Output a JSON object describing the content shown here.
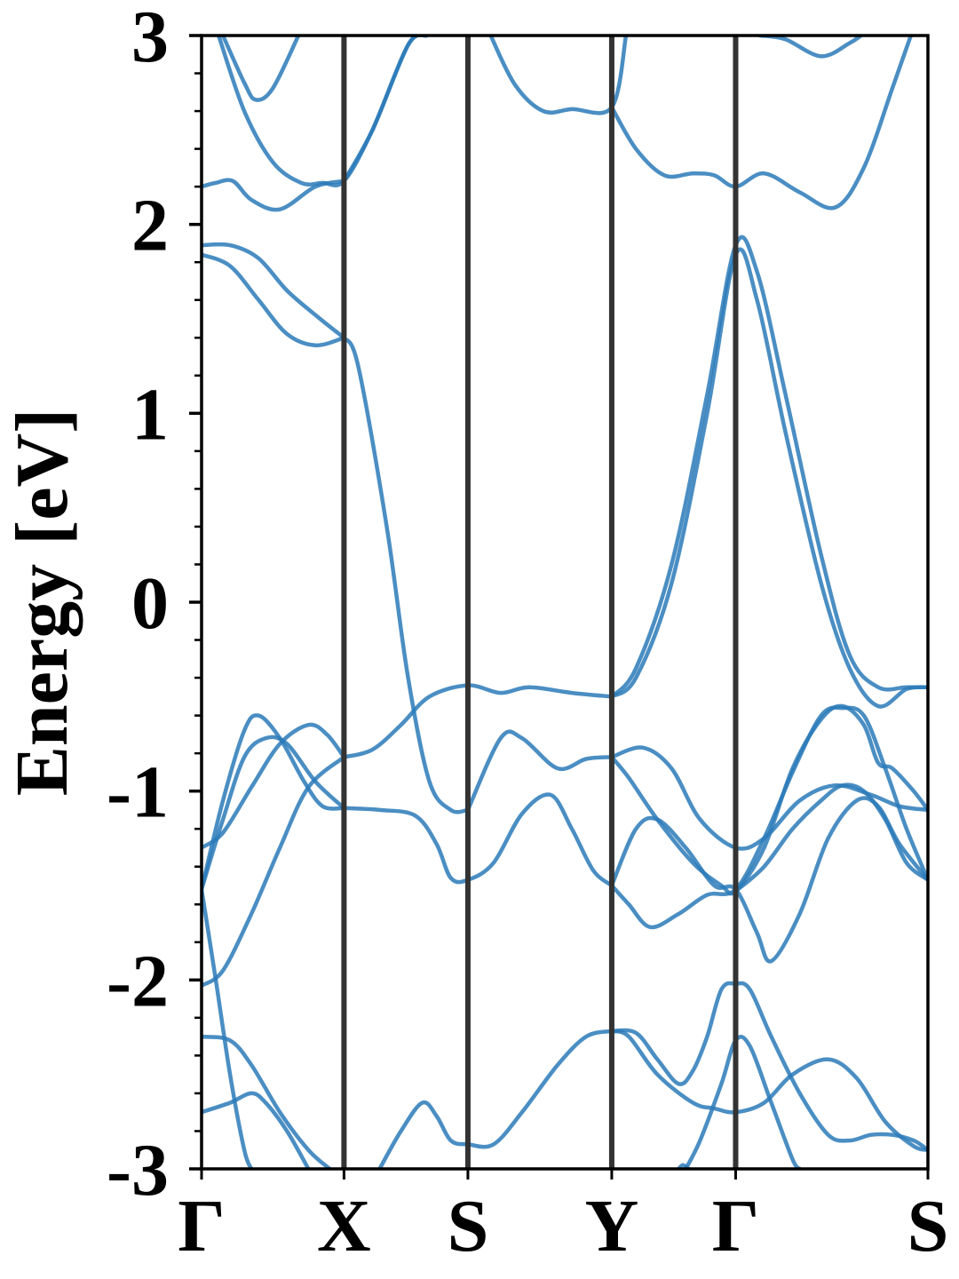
{
  "chart_data": {
    "type": "line",
    "title": "",
    "ylabel": "Energy [eV]",
    "xlabel": "",
    "ylim": [
      -3,
      3
    ],
    "yticks": [
      3,
      2,
      1,
      0,
      -1,
      -2,
      -3
    ],
    "ytick_labels": [
      "3",
      "2",
      "1",
      "0",
      "-1",
      "-2",
      "-3"
    ],
    "minor_ticks_per_major": 4,
    "grid": false,
    "xlim": [
      0,
      5.1
    ],
    "kpoints": [
      {
        "label": "Γ",
        "x": 0
      },
      {
        "label": "X",
        "x": 1.0
      },
      {
        "label": "S",
        "x": 1.87
      },
      {
        "label": "Y",
        "x": 2.88
      },
      {
        "label": "Γ",
        "x": 3.75
      },
      {
        "label": "S",
        "x": 5.1
      }
    ],
    "band_color": "#2a7ab8",
    "kpath_line_color": "#333333",
    "series": [
      {
        "points": [
          [
            0.15,
            3.0
          ],
          [
            0.3,
            2.75
          ],
          [
            0.38,
            2.66
          ],
          [
            0.5,
            2.72
          ],
          [
            0.68,
            3.0
          ]
        ]
      },
      {
        "points": [
          [
            0.12,
            3.0
          ],
          [
            0.3,
            2.6
          ],
          [
            0.5,
            2.33
          ],
          [
            0.7,
            2.22
          ],
          [
            0.85,
            2.22
          ],
          [
            1.0,
            2.23
          ],
          [
            1.2,
            2.5
          ],
          [
            1.45,
            2.95
          ],
          [
            1.58,
            3.0
          ]
        ]
      },
      {
        "points": [
          [
            0.0,
            2.2
          ],
          [
            0.1,
            2.22
          ],
          [
            0.22,
            2.23
          ],
          [
            0.35,
            2.13
          ],
          [
            0.55,
            2.08
          ],
          [
            0.8,
            2.2
          ],
          [
            1.0,
            2.23
          ]
        ]
      },
      {
        "points": [
          [
            1.0,
            2.23
          ],
          [
            1.2,
            2.5
          ],
          [
            1.45,
            2.95
          ],
          [
            1.58,
            3.0
          ]
        ]
      },
      {
        "points": [
          [
            2.03,
            3.0
          ],
          [
            2.2,
            2.74
          ],
          [
            2.4,
            2.6
          ],
          [
            2.6,
            2.61
          ],
          [
            2.88,
            2.62
          ],
          [
            2.98,
            3.0
          ]
        ]
      },
      {
        "points": [
          [
            2.88,
            2.62
          ],
          [
            3.05,
            2.4
          ],
          [
            3.25,
            2.26
          ],
          [
            3.45,
            2.27
          ],
          [
            3.6,
            2.26
          ],
          [
            3.75,
            2.2
          ],
          [
            3.95,
            2.27
          ],
          [
            4.2,
            2.17
          ],
          [
            4.45,
            2.09
          ],
          [
            4.65,
            2.3
          ],
          [
            4.85,
            2.72
          ],
          [
            4.98,
            3.0
          ]
        ]
      },
      {
        "points": [
          [
            3.92,
            3.0
          ],
          [
            4.1,
            2.98
          ],
          [
            4.35,
            2.89
          ],
          [
            4.55,
            2.96
          ],
          [
            4.63,
            3.0
          ]
        ]
      },
      {
        "points": [
          [
            0.0,
            1.89
          ],
          [
            0.2,
            1.89
          ],
          [
            0.4,
            1.82
          ],
          [
            0.6,
            1.65
          ],
          [
            0.8,
            1.52
          ],
          [
            1.0,
            1.4
          ]
        ]
      },
      {
        "points": [
          [
            0.0,
            1.84
          ],
          [
            0.2,
            1.78
          ],
          [
            0.4,
            1.6
          ],
          [
            0.6,
            1.42
          ],
          [
            0.8,
            1.36
          ],
          [
            1.0,
            1.4
          ]
        ]
      },
      {
        "points": [
          [
            1.0,
            1.4
          ],
          [
            1.1,
            1.25
          ],
          [
            1.3,
            0.4
          ],
          [
            1.45,
            -0.4
          ],
          [
            1.6,
            -0.95
          ],
          [
            1.75,
            -1.1
          ],
          [
            1.87,
            -1.1
          ]
        ]
      },
      {
        "points": [
          [
            1.87,
            -1.1
          ],
          [
            2.1,
            -0.72
          ],
          [
            2.25,
            -0.72
          ],
          [
            2.5,
            -0.88
          ],
          [
            2.7,
            -0.83
          ],
          [
            2.88,
            -0.82
          ]
        ]
      },
      {
        "points": [
          [
            2.88,
            -0.82
          ],
          [
            3.1,
            -0.77
          ],
          [
            3.3,
            -0.88
          ],
          [
            3.5,
            -1.15
          ],
          [
            3.75,
            -1.3
          ],
          [
            3.95,
            -1.25
          ],
          [
            4.2,
            -1.05
          ],
          [
            4.45,
            -0.97
          ],
          [
            4.7,
            -1.02
          ],
          [
            4.9,
            -1.08
          ],
          [
            5.1,
            -1.1
          ]
        ]
      },
      {
        "points": [
          [
            2.88,
            -0.5
          ],
          [
            3.05,
            -0.4
          ],
          [
            3.3,
            0.1
          ],
          [
            3.55,
            1.0
          ],
          [
            3.75,
            1.84
          ],
          [
            3.9,
            1.6
          ],
          [
            4.1,
            0.9
          ],
          [
            4.35,
            0.1
          ],
          [
            4.55,
            -0.35
          ],
          [
            4.75,
            -0.55
          ],
          [
            4.95,
            -0.46
          ],
          [
            5.1,
            -0.45
          ]
        ]
      },
      {
        "points": [
          [
            2.88,
            -0.5
          ],
          [
            3.05,
            -0.35
          ],
          [
            3.3,
            0.2
          ],
          [
            3.55,
            1.1
          ],
          [
            3.75,
            1.89
          ],
          [
            3.9,
            1.75
          ],
          [
            4.1,
            1.1
          ],
          [
            4.35,
            0.25
          ],
          [
            4.55,
            -0.28
          ],
          [
            4.75,
            -0.45
          ],
          [
            4.95,
            -0.45
          ],
          [
            5.1,
            -0.45
          ]
        ]
      },
      {
        "points": [
          [
            1.0,
            -0.82
          ],
          [
            1.2,
            -0.78
          ],
          [
            1.4,
            -0.65
          ],
          [
            1.6,
            -0.5
          ],
          [
            1.87,
            -0.44
          ],
          [
            2.1,
            -0.48
          ],
          [
            2.3,
            -0.45
          ],
          [
            2.6,
            -0.48
          ],
          [
            2.88,
            -0.5
          ]
        ]
      },
      {
        "points": [
          [
            0.0,
            -1.52
          ],
          [
            0.15,
            -1.05
          ],
          [
            0.3,
            -0.68
          ],
          [
            0.4,
            -0.6
          ],
          [
            0.55,
            -0.72
          ],
          [
            0.72,
            -0.95
          ],
          [
            0.85,
            -1.08
          ],
          [
            1.0,
            -1.09
          ]
        ]
      },
      {
        "points": [
          [
            0.0,
            -1.52
          ],
          [
            0.15,
            -1.15
          ],
          [
            0.3,
            -0.82
          ],
          [
            0.45,
            -0.72
          ],
          [
            0.6,
            -0.75
          ],
          [
            0.8,
            -0.95
          ],
          [
            1.0,
            -1.09
          ]
        ]
      },
      {
        "points": [
          [
            0.0,
            -1.3
          ],
          [
            0.15,
            -1.22
          ],
          [
            0.35,
            -0.98
          ],
          [
            0.55,
            -0.75
          ],
          [
            0.75,
            -0.65
          ],
          [
            0.88,
            -0.7
          ],
          [
            1.0,
            -0.82
          ]
        ]
      },
      {
        "points": [
          [
            0.0,
            -2.03
          ],
          [
            0.15,
            -1.95
          ],
          [
            0.35,
            -1.65
          ],
          [
            0.55,
            -1.3
          ],
          [
            0.75,
            -0.98
          ],
          [
            1.0,
            -0.82
          ]
        ]
      },
      {
        "points": [
          [
            1.0,
            -1.09
          ],
          [
            1.25,
            -1.1
          ],
          [
            1.5,
            -1.13
          ],
          [
            1.65,
            -1.28
          ],
          [
            1.75,
            -1.46
          ],
          [
            1.87,
            -1.47
          ],
          [
            2.05,
            -1.38
          ],
          [
            2.25,
            -1.12
          ],
          [
            2.45,
            -1.02
          ],
          [
            2.6,
            -1.2
          ],
          [
            2.75,
            -1.42
          ],
          [
            2.88,
            -1.5
          ]
        ]
      },
      {
        "points": [
          [
            2.88,
            -1.5
          ],
          [
            3.05,
            -1.2
          ],
          [
            3.2,
            -1.15
          ],
          [
            3.4,
            -1.3
          ],
          [
            3.6,
            -1.5
          ],
          [
            3.75,
            -1.52
          ],
          [
            3.9,
            -1.75
          ],
          [
            4.0,
            -1.9
          ],
          [
            4.2,
            -1.65
          ],
          [
            4.4,
            -1.25
          ],
          [
            4.6,
            -1.05
          ],
          [
            4.75,
            -1.08
          ],
          [
            4.9,
            -1.28
          ],
          [
            5.1,
            -1.47
          ]
        ]
      },
      {
        "points": [
          [
            2.88,
            -0.82
          ],
          [
            3.0,
            -0.93
          ],
          [
            3.2,
            -1.15
          ],
          [
            3.45,
            -1.38
          ],
          [
            3.65,
            -1.5
          ],
          [
            3.75,
            -1.53
          ],
          [
            3.95,
            -1.3
          ],
          [
            4.15,
            -0.88
          ],
          [
            4.35,
            -0.62
          ],
          [
            4.5,
            -0.55
          ],
          [
            4.65,
            -0.65
          ],
          [
            4.75,
            -0.85
          ],
          [
            4.85,
            -0.88
          ],
          [
            5.0,
            -1.0
          ],
          [
            5.1,
            -1.1
          ]
        ]
      },
      {
        "points": [
          [
            2.88,
            -1.5
          ],
          [
            3.0,
            -1.6
          ],
          [
            3.15,
            -1.72
          ],
          [
            3.35,
            -1.65
          ],
          [
            3.55,
            -1.55
          ],
          [
            3.75,
            -1.52
          ],
          [
            3.95,
            -1.25
          ],
          [
            4.15,
            -0.9
          ],
          [
            4.35,
            -0.6
          ],
          [
            4.5,
            -0.56
          ],
          [
            4.65,
            -0.6
          ],
          [
            4.8,
            -0.88
          ],
          [
            4.95,
            -1.2
          ],
          [
            5.1,
            -1.47
          ]
        ]
      },
      {
        "points": [
          [
            3.75,
            -1.53
          ],
          [
            3.95,
            -1.4
          ],
          [
            4.15,
            -1.2
          ],
          [
            4.35,
            -1.05
          ],
          [
            4.5,
            -0.97
          ],
          [
            4.65,
            -1.0
          ],
          [
            4.8,
            -1.15
          ],
          [
            4.95,
            -1.38
          ],
          [
            5.1,
            -1.47
          ]
        ]
      },
      {
        "points": [
          [
            0.0,
            -2.3
          ],
          [
            0.2,
            -2.32
          ],
          [
            0.35,
            -2.45
          ],
          [
            0.55,
            -2.7
          ],
          [
            0.75,
            -2.9
          ],
          [
            0.9,
            -3.0
          ]
        ]
      },
      {
        "points": [
          [
            0.0,
            -2.7
          ],
          [
            0.2,
            -2.65
          ],
          [
            0.35,
            -2.6
          ],
          [
            0.45,
            -2.65
          ],
          [
            0.6,
            -2.8
          ],
          [
            0.75,
            -3.0
          ]
        ]
      },
      {
        "points": [
          [
            0.0,
            -1.52
          ],
          [
            0.1,
            -2.0
          ],
          [
            0.2,
            -2.5
          ],
          [
            0.3,
            -2.9
          ],
          [
            0.35,
            -3.0
          ]
        ]
      },
      {
        "points": [
          [
            1.25,
            -3.0
          ],
          [
            1.4,
            -2.8
          ],
          [
            1.55,
            -2.65
          ],
          [
            1.65,
            -2.72
          ],
          [
            1.75,
            -2.85
          ],
          [
            1.87,
            -2.87
          ],
          [
            2.05,
            -2.87
          ],
          [
            2.25,
            -2.7
          ],
          [
            2.5,
            -2.45
          ],
          [
            2.7,
            -2.3
          ],
          [
            2.88,
            -2.27
          ]
        ]
      },
      {
        "points": [
          [
            2.88,
            -2.27
          ],
          [
            3.0,
            -2.3
          ],
          [
            3.2,
            -2.5
          ],
          [
            3.45,
            -2.65
          ],
          [
            3.6,
            -2.68
          ],
          [
            3.75,
            -2.7
          ],
          [
            3.95,
            -2.65
          ],
          [
            4.15,
            -2.5
          ],
          [
            4.4,
            -2.42
          ],
          [
            4.6,
            -2.52
          ],
          [
            4.8,
            -2.75
          ],
          [
            5.0,
            -2.88
          ],
          [
            5.1,
            -2.9
          ]
        ]
      },
      {
        "points": [
          [
            2.88,
            -2.27
          ],
          [
            3.05,
            -2.28
          ],
          [
            3.2,
            -2.42
          ],
          [
            3.35,
            -2.55
          ],
          [
            3.45,
            -2.48
          ],
          [
            3.55,
            -2.3
          ],
          [
            3.65,
            -2.05
          ],
          [
            3.75,
            -2.02
          ],
          [
            3.85,
            -2.05
          ],
          [
            4.0,
            -2.3
          ],
          [
            4.2,
            -2.6
          ],
          [
            4.4,
            -2.82
          ],
          [
            4.55,
            -2.85
          ],
          [
            4.7,
            -2.82
          ],
          [
            4.85,
            -2.82
          ],
          [
            5.0,
            -2.85
          ],
          [
            5.1,
            -2.9
          ]
        ]
      },
      {
        "points": [
          [
            3.4,
            -3.0
          ],
          [
            3.5,
            -2.85
          ],
          [
            3.65,
            -2.55
          ],
          [
            3.75,
            -2.32
          ],
          [
            3.85,
            -2.35
          ],
          [
            4.0,
            -2.65
          ],
          [
            4.15,
            -2.95
          ],
          [
            4.2,
            -3.0
          ]
        ]
      },
      {
        "points": [
          [
            3.35,
            -3.0
          ],
          [
            3.38,
            -2.98
          ],
          [
            3.42,
            -3.0
          ]
        ]
      }
    ]
  }
}
